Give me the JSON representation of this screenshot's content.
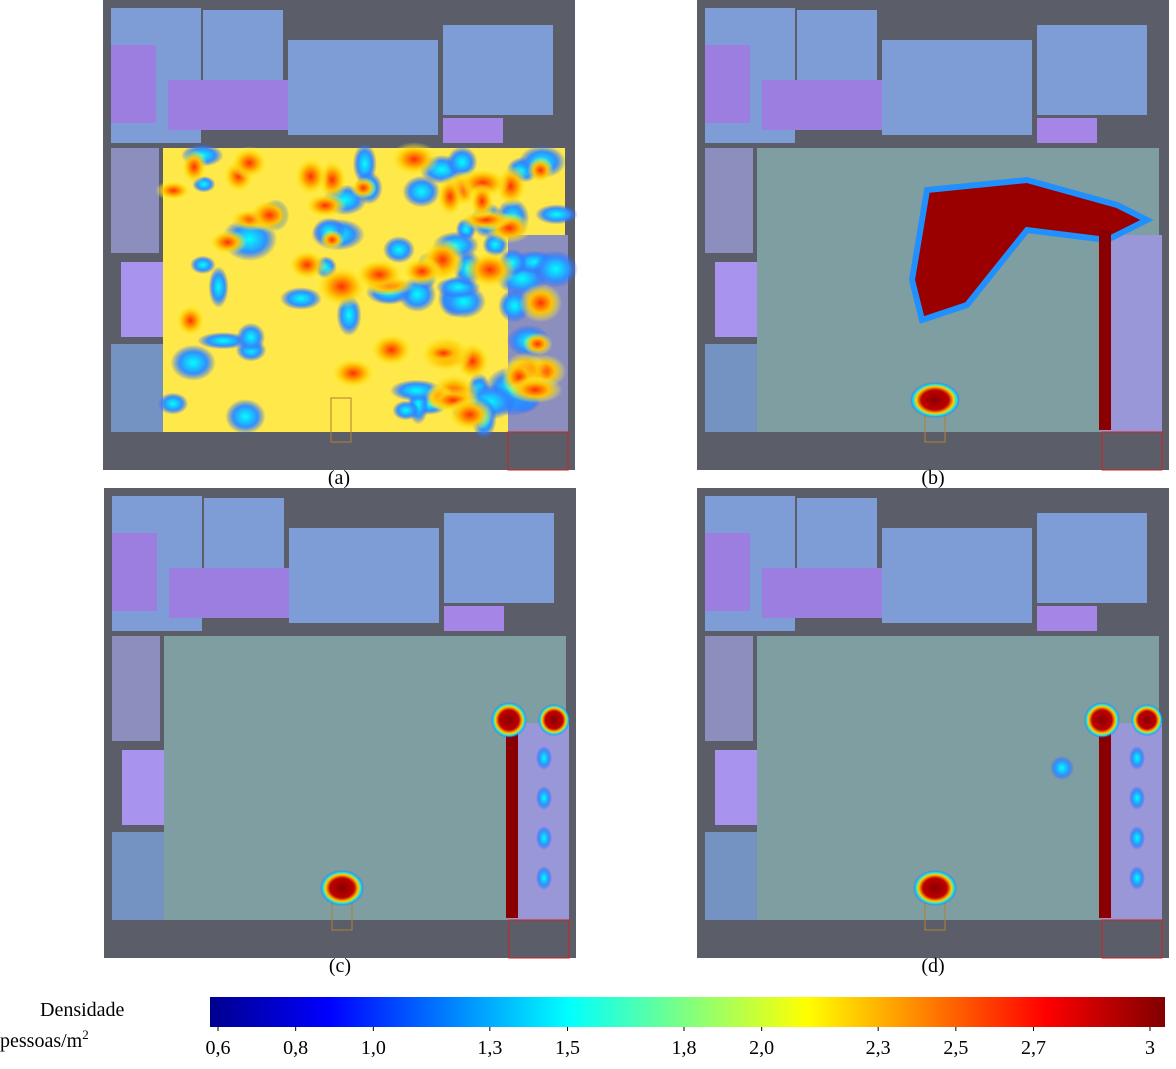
{
  "panels": [
    {
      "label": "(a)"
    },
    {
      "label": "(b)"
    },
    {
      "label": "(c)"
    },
    {
      "label": "(d)"
    }
  ],
  "colorbar": {
    "title": "Densidade",
    "unit": "pessoas/m",
    "unit_sup": "2",
    "lim": [
      0.6,
      3
    ],
    "ticks": [
      {
        "value": 0.6,
        "label": "0,6"
      },
      {
        "value": 0.8,
        "label": "0,8"
      },
      {
        "value": 1.0,
        "label": "1,0"
      },
      {
        "value": 1.3,
        "label": "1,3"
      },
      {
        "value": 1.5,
        "label": "1,5"
      },
      {
        "value": 1.8,
        "label": "1,8"
      },
      {
        "value": 2.0,
        "label": "2,0"
      },
      {
        "value": 2.3,
        "label": "2,3"
      },
      {
        "value": 2.5,
        "label": "2,5"
      },
      {
        "value": 2.7,
        "label": "2,7"
      },
      3
    ]
  }
}
